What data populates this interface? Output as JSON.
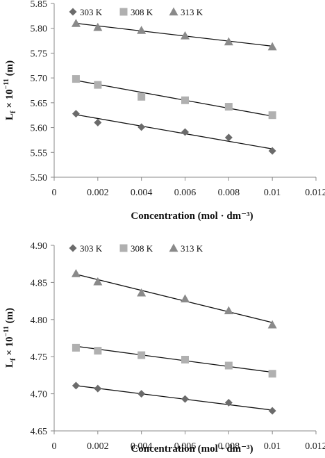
{
  "chart_data": [
    {
      "type": "scatter",
      "xlabel": "Concentration (mol · dm⁻³)",
      "ylabel_main": "L",
      "ylabel_sub": "f",
      "ylabel_rest": " × 10",
      "ylabel_sup": "−11",
      "ylabel_unit": " (m)",
      "xlim": [
        0,
        0.012
      ],
      "ylim": [
        5.5,
        5.85
      ],
      "xticks": [
        0,
        0.002,
        0.004,
        0.006,
        0.008,
        0.01,
        0.012
      ],
      "xtick_labels": [
        "0",
        "0.002",
        "0.004",
        "0.006",
        "0.008",
        "0.01",
        "0.012"
      ],
      "yticks": [
        5.5,
        5.55,
        5.6,
        5.65,
        5.7,
        5.75,
        5.8,
        5.85
      ],
      "ytick_labels": [
        "5.50",
        "5.55",
        "5.60",
        "5.65",
        "5.70",
        "5.75",
        "5.80",
        "5.85"
      ],
      "grid": false,
      "legend_position": "top-left",
      "series": [
        {
          "name": "303 K",
          "marker": "diamond",
          "color": "#6b6b6b",
          "x": [
            0.001,
            0.002,
            0.004,
            0.006,
            0.008,
            0.01
          ],
          "y": [
            5.628,
            5.61,
            5.601,
            5.591,
            5.58,
            5.553
          ],
          "trend": [
            [
              0.001,
              5.626
            ],
            [
              0.01,
              5.557
            ]
          ]
        },
        {
          "name": "308 K",
          "marker": "square",
          "color": "#b0b0b0",
          "x": [
            0.001,
            0.002,
            0.004,
            0.006,
            0.008,
            0.01
          ],
          "y": [
            5.698,
            5.686,
            5.662,
            5.655,
            5.642,
            5.625
          ],
          "trend": [
            [
              0.001,
              5.695
            ],
            [
              0.01,
              5.623
            ]
          ]
        },
        {
          "name": "313 K",
          "marker": "triangle",
          "color": "#8a8a8a",
          "x": [
            0.001,
            0.002,
            0.004,
            0.006,
            0.008,
            0.01
          ],
          "y": [
            5.81,
            5.802,
            5.796,
            5.785,
            5.773,
            5.763
          ],
          "trend": [
            [
              0.001,
              5.81
            ],
            [
              0.01,
              5.764
            ]
          ]
        }
      ]
    },
    {
      "type": "scatter",
      "xlabel": "Concentration (mol · dm⁻³)",
      "ylabel_main": "L",
      "ylabel_sub": "f",
      "ylabel_rest": " × 10",
      "ylabel_sup": "−11",
      "ylabel_unit": " (m)",
      "xlim": [
        0,
        0.012
      ],
      "ylim": [
        4.65,
        4.9
      ],
      "xticks": [
        0,
        0.002,
        0.004,
        0.006,
        0.008,
        0.01,
        0.012
      ],
      "xtick_labels": [
        "0",
        "0.002",
        "0.004",
        "0.006",
        "0.008",
        "0.01",
        "0.012"
      ],
      "yticks": [
        4.65,
        4.7,
        4.75,
        4.8,
        4.85,
        4.9
      ],
      "ytick_labels": [
        "4.65",
        "4.70",
        "4.75",
        "4.80",
        "4.85",
        "4.90"
      ],
      "grid": false,
      "legend_position": "top-left",
      "series": [
        {
          "name": "303 K",
          "marker": "diamond",
          "color": "#6b6b6b",
          "x": [
            0.001,
            0.002,
            0.004,
            0.006,
            0.008,
            0.01
          ],
          "y": [
            4.711,
            4.707,
            4.7,
            4.693,
            4.688,
            4.677
          ],
          "trend": [
            [
              0.001,
              4.711
            ],
            [
              0.01,
              4.678
            ]
          ]
        },
        {
          "name": "308 K",
          "marker": "square",
          "color": "#b0b0b0",
          "x": [
            0.001,
            0.002,
            0.004,
            0.006,
            0.008,
            0.01
          ],
          "y": [
            4.762,
            4.758,
            4.752,
            4.746,
            4.738,
            4.727
          ],
          "trend": [
            [
              0.001,
              4.764
            ],
            [
              0.01,
              4.729
            ]
          ]
        },
        {
          "name": "313 K",
          "marker": "triangle",
          "color": "#8a8a8a",
          "x": [
            0.001,
            0.002,
            0.004,
            0.006,
            0.008,
            0.01
          ],
          "y": [
            4.862,
            4.851,
            4.836,
            4.828,
            4.812,
            4.793
          ],
          "trend": [
            [
              0.001,
              4.861
            ],
            [
              0.01,
              4.796
            ]
          ]
        }
      ]
    }
  ]
}
